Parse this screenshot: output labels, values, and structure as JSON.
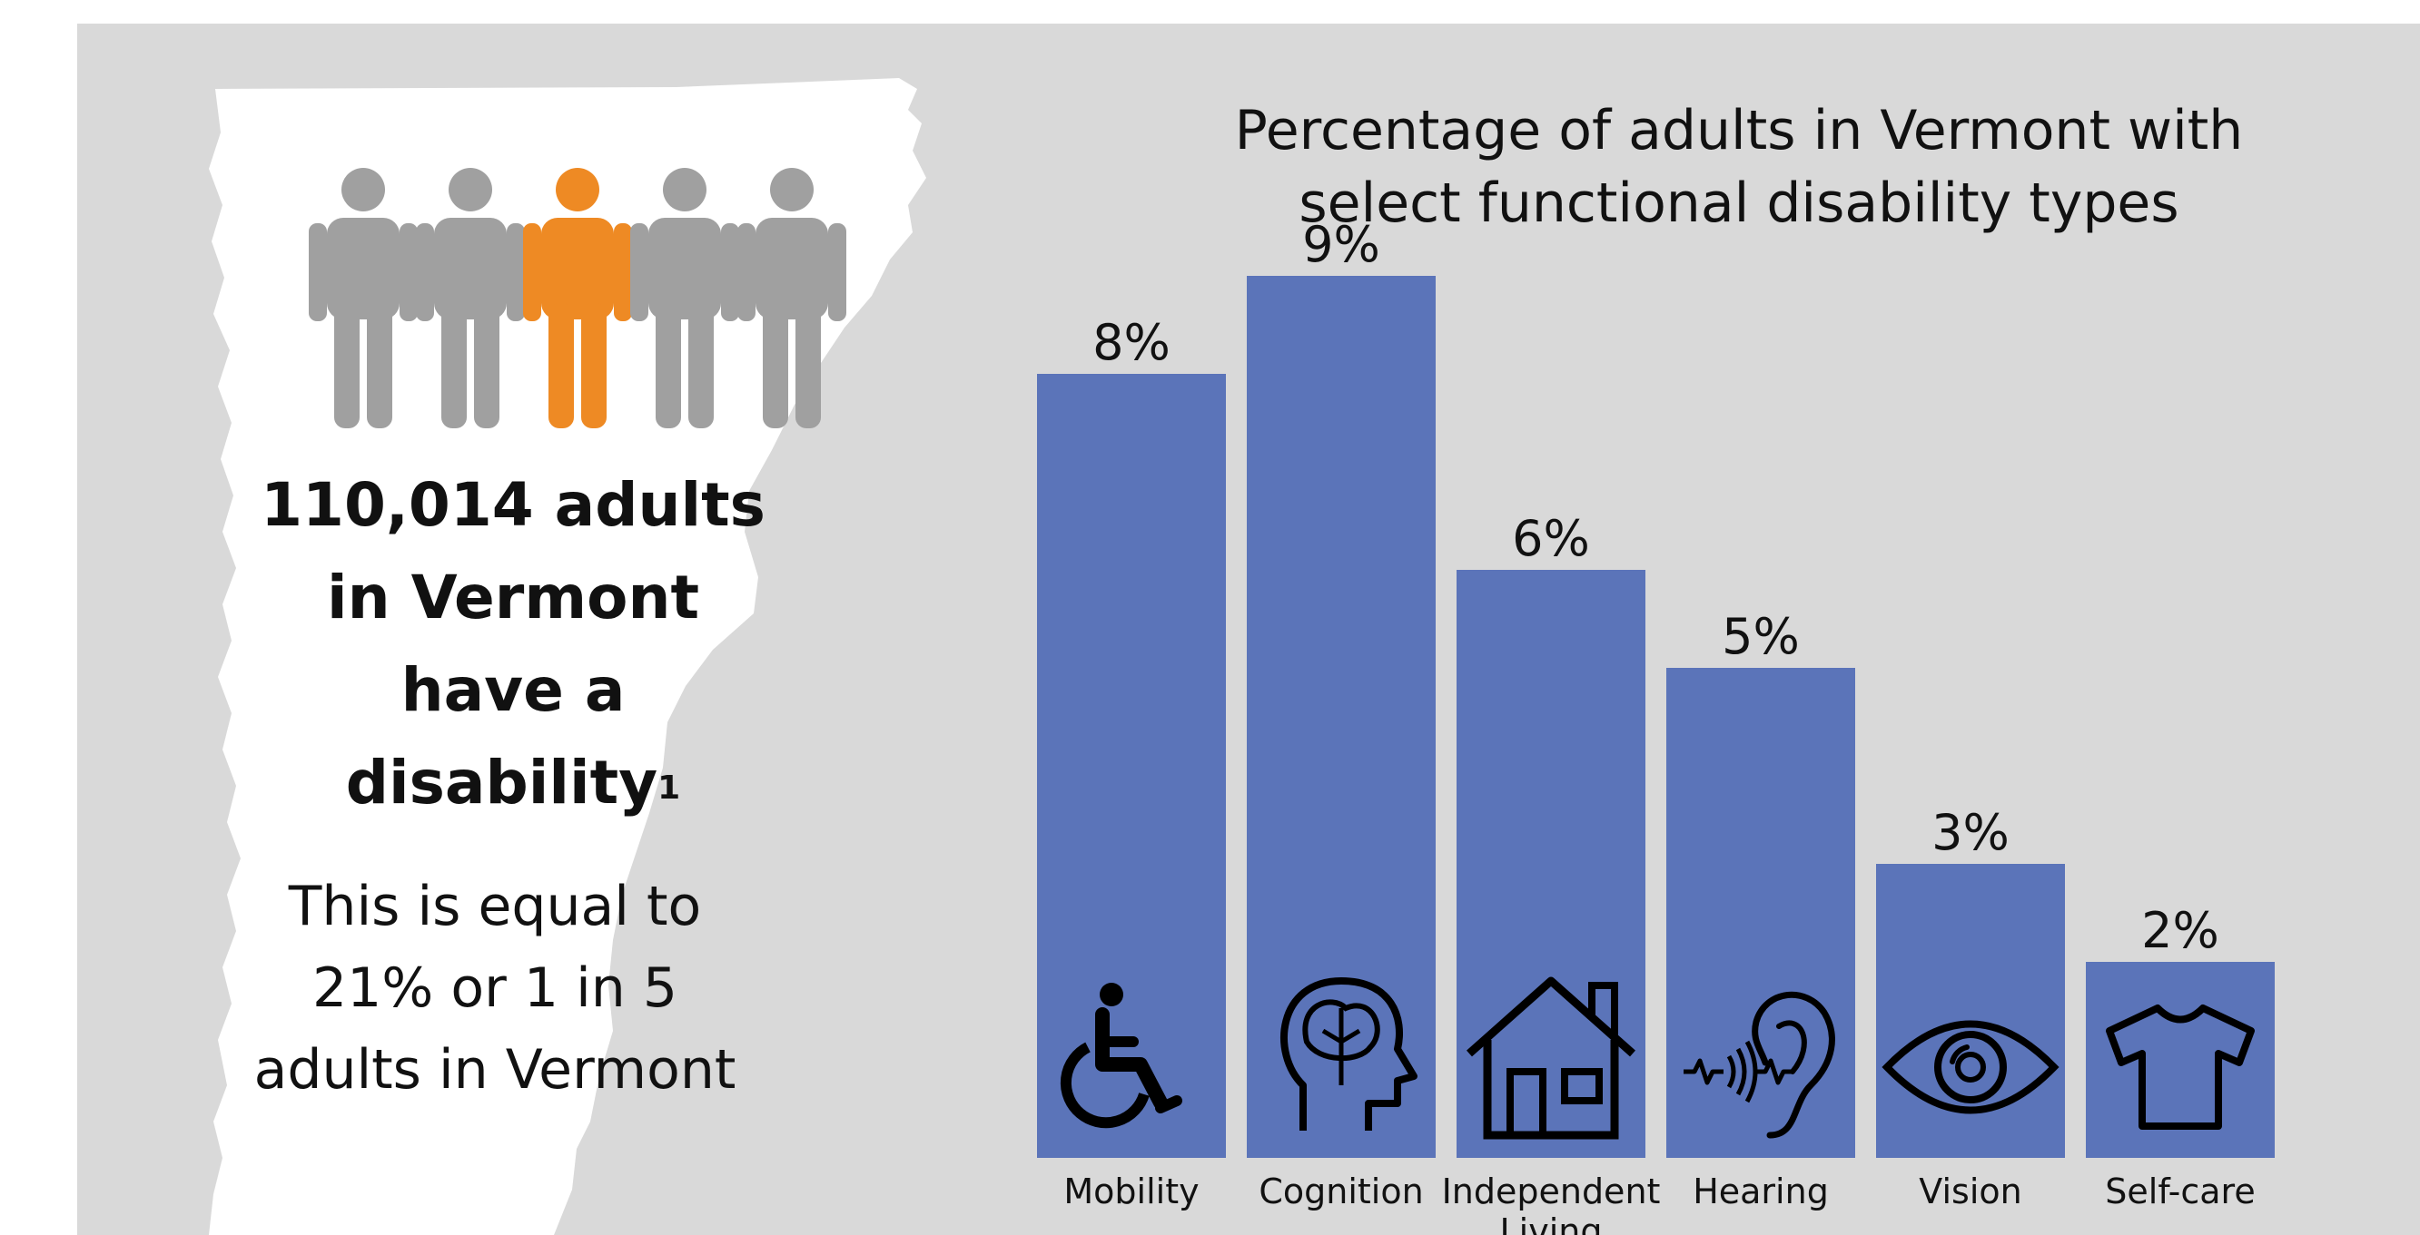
{
  "headline": {
    "text": "110,014 adults in Vermont have a disability",
    "footnote": "1"
  },
  "people_icons": {
    "total": 5,
    "highlighted_index": 2,
    "gray": "#a0a0a0",
    "highlight": "#ee8a24"
  },
  "subline": "This is equal to 21% or 1 in 5 adults in Vermont",
  "colors": {
    "background": "#d9d9d9",
    "bar": "#5b74b9",
    "icon": "#000000",
    "text": "#111111",
    "state": "#ffffff"
  },
  "chart_data": {
    "type": "bar",
    "title": "Percentage of adults in Vermont with select functional disability types",
    "categories": [
      "Mobility",
      "Cognition",
      "Independent Living",
      "Hearing",
      "Vision",
      "Self-care"
    ],
    "values": [
      8,
      9,
      6,
      5,
      3,
      2
    ],
    "value_labels": [
      "8%",
      "9%",
      "6%",
      "5%",
      "3%",
      "2%"
    ],
    "icons": [
      "wheelchair-icon",
      "brain-head-icon",
      "house-icon",
      "ear-icon",
      "eye-icon",
      "shirt-icon"
    ],
    "unit": "%",
    "ylim": [
      0,
      10
    ],
    "grid": false,
    "legend": "none"
  }
}
